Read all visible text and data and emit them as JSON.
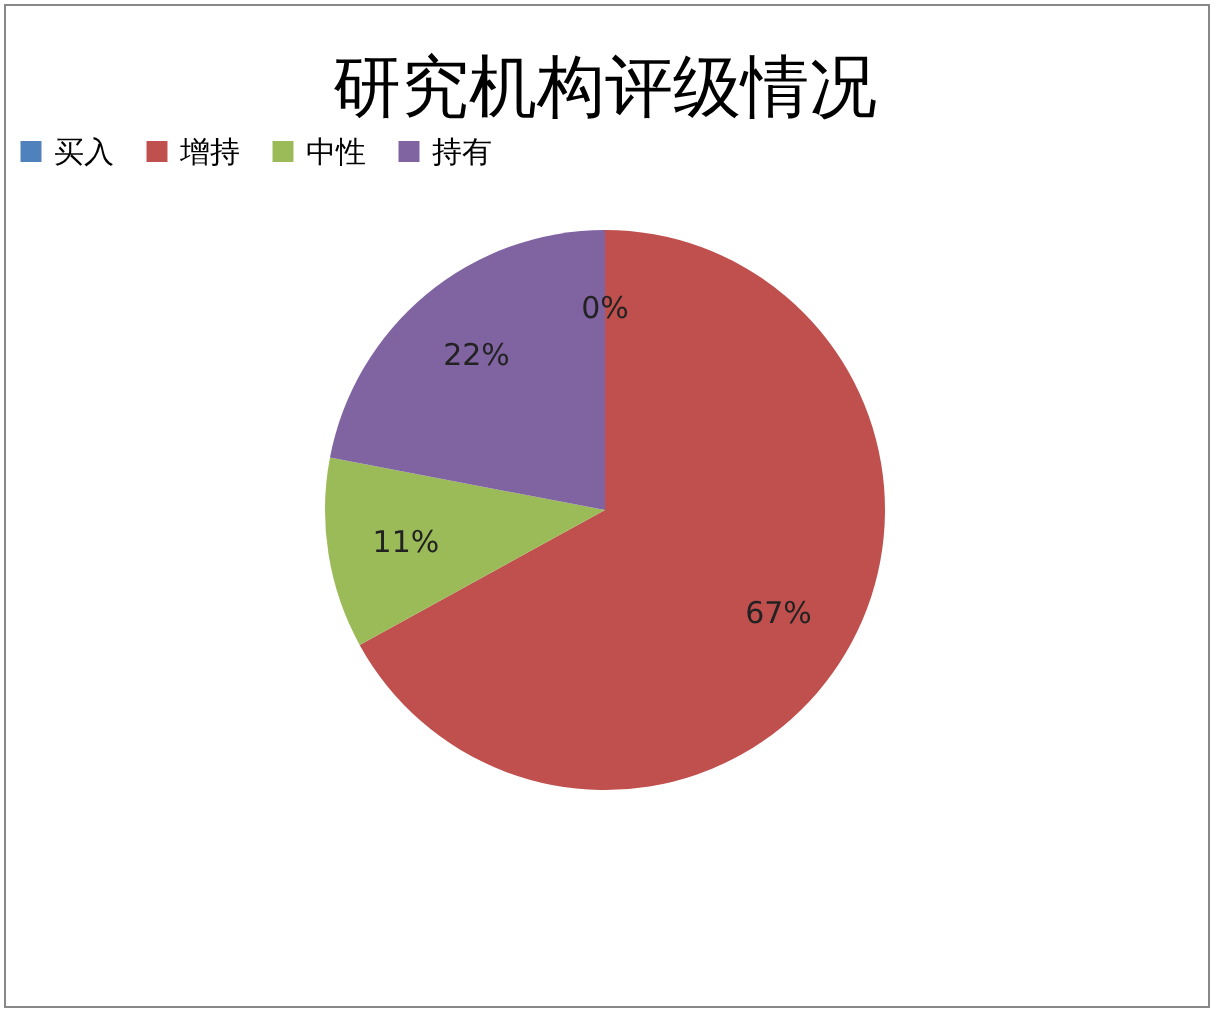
{
  "chart_data": {
    "type": "pie",
    "title": "研究机构评级情况",
    "categories": [
      "买入",
      "增持",
      "中性",
      "持有"
    ],
    "values": [
      0,
      67,
      11,
      22
    ],
    "colors": [
      "#4f81bd",
      "#c0504d",
      "#9bbb59",
      "#8064a2"
    ],
    "value_labels": [
      "0%",
      "67%",
      "11%",
      "22%"
    ],
    "legend": "top"
  }
}
